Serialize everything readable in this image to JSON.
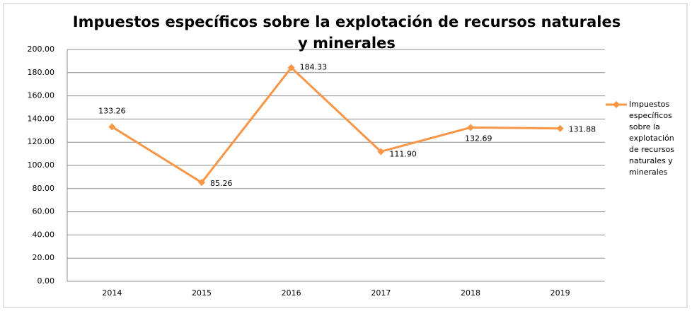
{
  "chart_data": {
    "type": "line",
    "title": "Impuestos específicos sobre la explotación de recursos naturales y minerales",
    "categories": [
      "2014",
      "2015",
      "2016",
      "2017",
      "2018",
      "2019"
    ],
    "series": [
      {
        "name": "Impuestos específicos sobre la explotación de recursos naturales y minerales",
        "color": "#f79646",
        "values": [
          133.26,
          85.26,
          184.33,
          111.9,
          132.69,
          131.88
        ],
        "value_labels": [
          "133.26",
          "85.26",
          "184.33",
          "111.90",
          "132.69",
          "131.88"
        ]
      }
    ],
    "ylim": [
      0,
      200
    ],
    "yticks": [
      {
        "value": 0,
        "label": "0.00"
      },
      {
        "value": 20,
        "label": "20.00"
      },
      {
        "value": 40,
        "label": "40.00"
      },
      {
        "value": 60,
        "label": "60.00"
      },
      {
        "value": 80,
        "label": "80.00"
      },
      {
        "value": 100,
        "label": "100.00"
      },
      {
        "value": 120,
        "label": "120.00"
      },
      {
        "value": 140,
        "label": "140.00"
      },
      {
        "value": 160,
        "label": "160.00"
      },
      {
        "value": 180,
        "label": "180.00"
      },
      {
        "value": 200,
        "label": "200.00"
      }
    ],
    "grid": true,
    "legend": "right"
  }
}
